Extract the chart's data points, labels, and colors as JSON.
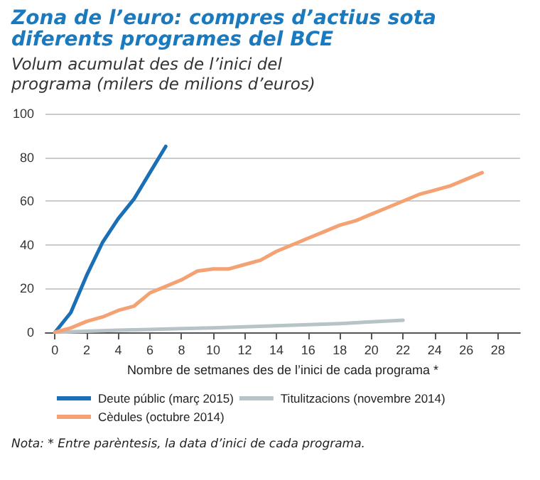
{
  "chart_data": {
    "type": "line",
    "title": "Zona de l’euro: compres d’actius sota diferents programes del BCE",
    "subtitle": "Volum acumulat des de l’inici del programa (milers de milions d’euros)",
    "xlabel": "Nombre de setmanes des de l’inici de cada programa *",
    "annotations": [
      "Nota: * Entre parèntesis, la data d’inici de cada programa."
    ],
    "series": [
      {
        "name": "Deute públic (març 2015)",
        "color": "#1a6fb5",
        "x": [
          0,
          1,
          2,
          3,
          4,
          5,
          6,
          7
        ],
        "values": [
          0,
          9,
          26,
          41,
          52,
          61,
          73,
          85
        ]
      },
      {
        "name": "Titulitzacions (novembre 2014)",
        "color": "#b8c3c8",
        "x": [
          0,
          2,
          4,
          6,
          8,
          10,
          12,
          14,
          16,
          18,
          20,
          22
        ],
        "values": [
          0,
          0.5,
          1,
          1.3,
          1.7,
          2,
          2.5,
          3,
          3.5,
          4,
          4.8,
          5.5
        ]
      },
      {
        "name": "Cèdules (octubre 2014)",
        "color": "#f4a173",
        "x": [
          0,
          1,
          2,
          3,
          4,
          5,
          6,
          7,
          8,
          9,
          10,
          11,
          12,
          13,
          14,
          15,
          16,
          17,
          18,
          19,
          20,
          21,
          22,
          23,
          24,
          25,
          26,
          27
        ],
        "values": [
          0,
          2,
          5,
          7,
          10,
          12,
          18,
          21,
          24,
          28,
          29,
          29,
          31,
          33,
          37,
          40,
          43,
          46,
          49,
          51,
          54,
          57,
          60,
          63,
          65,
          67,
          70,
          73
        ]
      }
    ],
    "xlim": [
      -0.6,
      29.4
    ],
    "xticks": [
      0,
      2,
      4,
      6,
      8,
      10,
      12,
      14,
      16,
      18,
      20,
      22,
      24,
      26,
      28
    ],
    "ylim": [
      0,
      100
    ],
    "yticks": [
      0,
      20,
      40,
      60,
      80,
      100
    ],
    "grid": "y",
    "legend": "bottom",
    "marker": "none",
    "line_style": "solid"
  }
}
